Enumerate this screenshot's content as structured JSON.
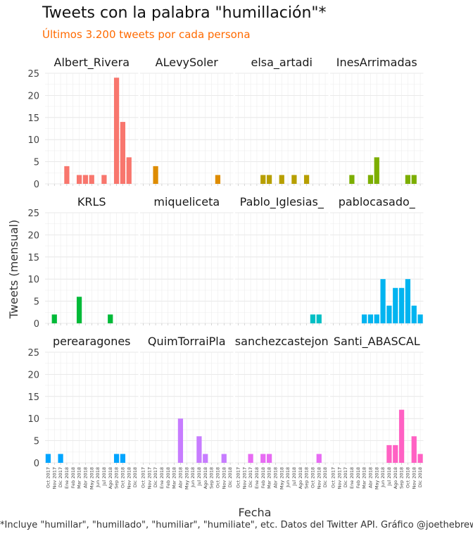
{
  "title": "Tweets con la palabra \"humillación\"*",
  "subtitle": "Últimos 3.200 tweets por cada persona",
  "caption": "*Incluye \"humillar\", \"humillado\", \"humiliar\", \"humiliate\", etc. Datos del Twitter API. Gráfico @joethebrew.",
  "colors": {
    "Albert_Rivera": "#f8766d",
    "ALevySoler": "#de8c00",
    "elsa_artadi": "#b79f00",
    "InesArrimadas": "#7cae00",
    "KRLS": "#00ba38",
    "miqueliceta": "#00c08b",
    "Pablo_Iglesias_": "#00bfc4",
    "pablocasado_": "#00b4f0",
    "perearagones": "#00a5ff",
    "QuimTorraiPla": "#c77cff",
    "sanchezcastejon": "#e76bf3",
    "Santi_ABASCAL": "#ff61c3"
  },
  "chart_data": {
    "type": "bar",
    "xlabel": "Fecha",
    "ylabel": "Tweets (mensual)",
    "ylim": [
      0,
      25
    ],
    "yticks": [
      0,
      5,
      10,
      15,
      20,
      25
    ],
    "grid": true,
    "x": [
      "Oct 2017",
      "Nov 2017",
      "Dic 2017",
      "Ene 2018",
      "Feb 2018",
      "Mar 2018",
      "Abr 2018",
      "May 2018",
      "Jun 2018",
      "Jul 2018",
      "Ago 2018",
      "Sep 2018",
      "Oct 2018",
      "Nov 2018",
      "Dic 2018"
    ],
    "panels": [
      {
        "name": "Albert_Rivera",
        "values": [
          0,
          0,
          0,
          4,
          0,
          2,
          2,
          2,
          0,
          2,
          0,
          24,
          14,
          6,
          0
        ]
      },
      {
        "name": "ALevySoler",
        "values": [
          0,
          0,
          4,
          0,
          0,
          0,
          0,
          0,
          0,
          0,
          0,
          0,
          2,
          0,
          0
        ]
      },
      {
        "name": "elsa_artadi",
        "values": [
          0,
          0,
          0,
          0,
          2,
          2,
          0,
          2,
          0,
          2,
          0,
          2,
          0,
          0,
          0
        ]
      },
      {
        "name": "InesArrimadas",
        "values": [
          0,
          0,
          0,
          2,
          0,
          0,
          2,
          6,
          0,
          0,
          0,
          0,
          2,
          2,
          0
        ]
      },
      {
        "name": "KRLS",
        "values": [
          0,
          2,
          0,
          0,
          0,
          6,
          0,
          0,
          0,
          0,
          2,
          0,
          0,
          0,
          0
        ]
      },
      {
        "name": "miqueliceta",
        "values": [
          0,
          0,
          0,
          0,
          0,
          0,
          0,
          0,
          0,
          0,
          0,
          0,
          0,
          0,
          0
        ]
      },
      {
        "name": "Pablo_Iglesias_",
        "values": [
          0,
          0,
          0,
          0,
          0,
          0,
          0,
          0,
          0,
          0,
          0,
          0,
          2,
          2,
          0
        ]
      },
      {
        "name": "pablocasado_",
        "values": [
          0,
          0,
          0,
          0,
          0,
          2,
          2,
          2,
          10,
          4,
          8,
          8,
          10,
          4,
          2
        ]
      },
      {
        "name": "perearagones",
        "values": [
          2,
          0,
          2,
          0,
          0,
          0,
          0,
          0,
          0,
          0,
          0,
          2,
          2,
          0,
          0
        ]
      },
      {
        "name": "QuimTorraiPla",
        "values": [
          0,
          0,
          0,
          0,
          0,
          0,
          10,
          0,
          0,
          6,
          2,
          0,
          0,
          2,
          0
        ]
      },
      {
        "name": "sanchezcastejon",
        "values": [
          0,
          0,
          2,
          0,
          2,
          2,
          0,
          0,
          0,
          0,
          0,
          0,
          0,
          2,
          0
        ]
      },
      {
        "name": "Santi_ABASCAL",
        "values": [
          0,
          0,
          0,
          0,
          0,
          0,
          0,
          0,
          0,
          4,
          4,
          12,
          0,
          6,
          2
        ]
      }
    ]
  }
}
